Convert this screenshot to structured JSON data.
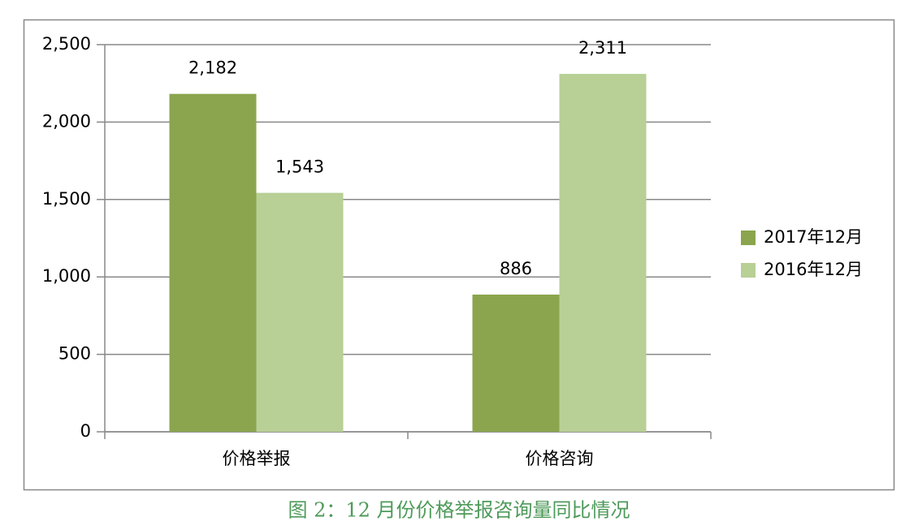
{
  "chart_data": {
    "type": "bar",
    "caption": "图 2：12 月份价格举报咨询量同比情况",
    "categories": [
      "价格举报",
      "价格咨询"
    ],
    "series": [
      {
        "name": "2017年12月",
        "color": "#8aa54e",
        "values": [
          2182,
          886
        ],
        "value_labels": [
          "2,182",
          "886"
        ]
      },
      {
        "name": "2016年12月",
        "color": "#b8cf95",
        "values": [
          1543,
          2311
        ],
        "value_labels": [
          "1,543",
          "2,311"
        ]
      }
    ],
    "ylim": [
      0,
      2500
    ],
    "yticks": [
      0,
      500,
      {
        "value": 1000,
        "label": "1,000"
      },
      {
        "value": 1500,
        "label": "1,500"
      },
      {
        "value": 2000,
        "label": "2,000"
      },
      {
        "value": 2500,
        "label": "2,500"
      }
    ],
    "grid": true,
    "legend": "right"
  }
}
